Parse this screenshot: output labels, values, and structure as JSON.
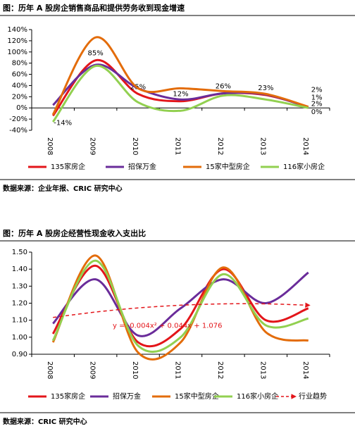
{
  "chart_data": [
    {
      "type": "line",
      "title": "图：历年 A 股房企销售商品和提供劳务收到现金增速",
      "source": "数据来源：企业年报、CRIC 研究中心",
      "categories": [
        "2008",
        "2009",
        "2010",
        "2011",
        "2012",
        "2013",
        "2014"
      ],
      "ylim": [
        -40,
        140
      ],
      "yticks": [
        {
          "value": -40,
          "label": "-40%"
        },
        {
          "value": -20,
          "label": "-20%"
        },
        {
          "value": 0,
          "label": "0%"
        },
        {
          "value": 20,
          "label": "20%"
        },
        {
          "value": 40,
          "label": "40%"
        },
        {
          "value": 60,
          "label": "60%"
        },
        {
          "value": 80,
          "label": "80%"
        },
        {
          "value": 100,
          "label": "100%"
        },
        {
          "value": 120,
          "label": "120%"
        },
        {
          "value": 140,
          "label": "140%"
        }
      ],
      "series": [
        {
          "name": "135家房企",
          "color": "#e3151a",
          "values": [
            -14,
            85,
            25,
            12,
            26,
            23,
            2
          ],
          "value_labels": [
            "-14%",
            "85%",
            "25%",
            "12%",
            "26%",
            "23%",
            "2%"
          ]
        },
        {
          "name": "招保万金",
          "color": "#6a2c9a",
          "values": [
            5,
            77,
            35,
            15,
            26,
            24,
            1
          ],
          "value_labels": [
            null,
            null,
            null,
            null,
            null,
            null,
            "1%"
          ]
        },
        {
          "name": "15家中型房企",
          "color": "#e36c0a",
          "values": [
            -12,
            126,
            35,
            35,
            30,
            25,
            2
          ],
          "value_labels": [
            null,
            null,
            null,
            null,
            null,
            null,
            "2%"
          ]
        },
        {
          "name": "116家小房企",
          "color": "#92d050",
          "values": [
            -25,
            75,
            10,
            -5,
            22,
            15,
            0
          ],
          "value_labels": [
            null,
            null,
            null,
            null,
            null,
            null,
            "0%"
          ]
        }
      ]
    },
    {
      "type": "line",
      "title": "图：历年 A 股房企经营性现金收入支出比",
      "source": "数据来源：CRIC 研究中心",
      "annotation": "y = -0.004x² + 0.044x + 1.076",
      "categories": [
        "2008",
        "2009",
        "2010",
        "2011",
        "2012",
        "2013",
        "2014"
      ],
      "ylim": [
        0.9,
        1.5
      ],
      "yticks": [
        {
          "value": 0.9,
          "label": "0.90"
        },
        {
          "value": 1.0,
          "label": "1.00"
        },
        {
          "value": 1.1,
          "label": "1.10"
        },
        {
          "value": 1.2,
          "label": "1.20"
        },
        {
          "value": 1.3,
          "label": "1.30"
        },
        {
          "value": 1.4,
          "label": "1.40"
        },
        {
          "value": 1.5,
          "label": "1.50"
        }
      ],
      "series": [
        {
          "name": "135家房企",
          "color": "#e3151a",
          "values": [
            1.02,
            1.42,
            0.97,
            1.05,
            1.4,
            1.1,
            1.17
          ]
        },
        {
          "name": "招保万金",
          "color": "#6a2c9a",
          "values": [
            1.08,
            1.34,
            1.01,
            1.17,
            1.34,
            1.2,
            1.38
          ]
        },
        {
          "name": "15家中型房企",
          "color": "#e36c0a",
          "values": [
            0.97,
            1.48,
            0.91,
            0.97,
            1.41,
            1.03,
            0.98
          ]
        },
        {
          "name": "116家小房企",
          "color": "#92d050",
          "values": [
            0.98,
            1.45,
            0.95,
            1.0,
            1.37,
            1.07,
            1.11
          ]
        },
        {
          "name": "行业趋势",
          "color": "#e3151a",
          "dashed": true,
          "arrow": true,
          "values": [
            1.116,
            1.148,
            1.172,
            1.188,
            1.196,
            1.196,
            1.188
          ]
        }
      ]
    }
  ]
}
